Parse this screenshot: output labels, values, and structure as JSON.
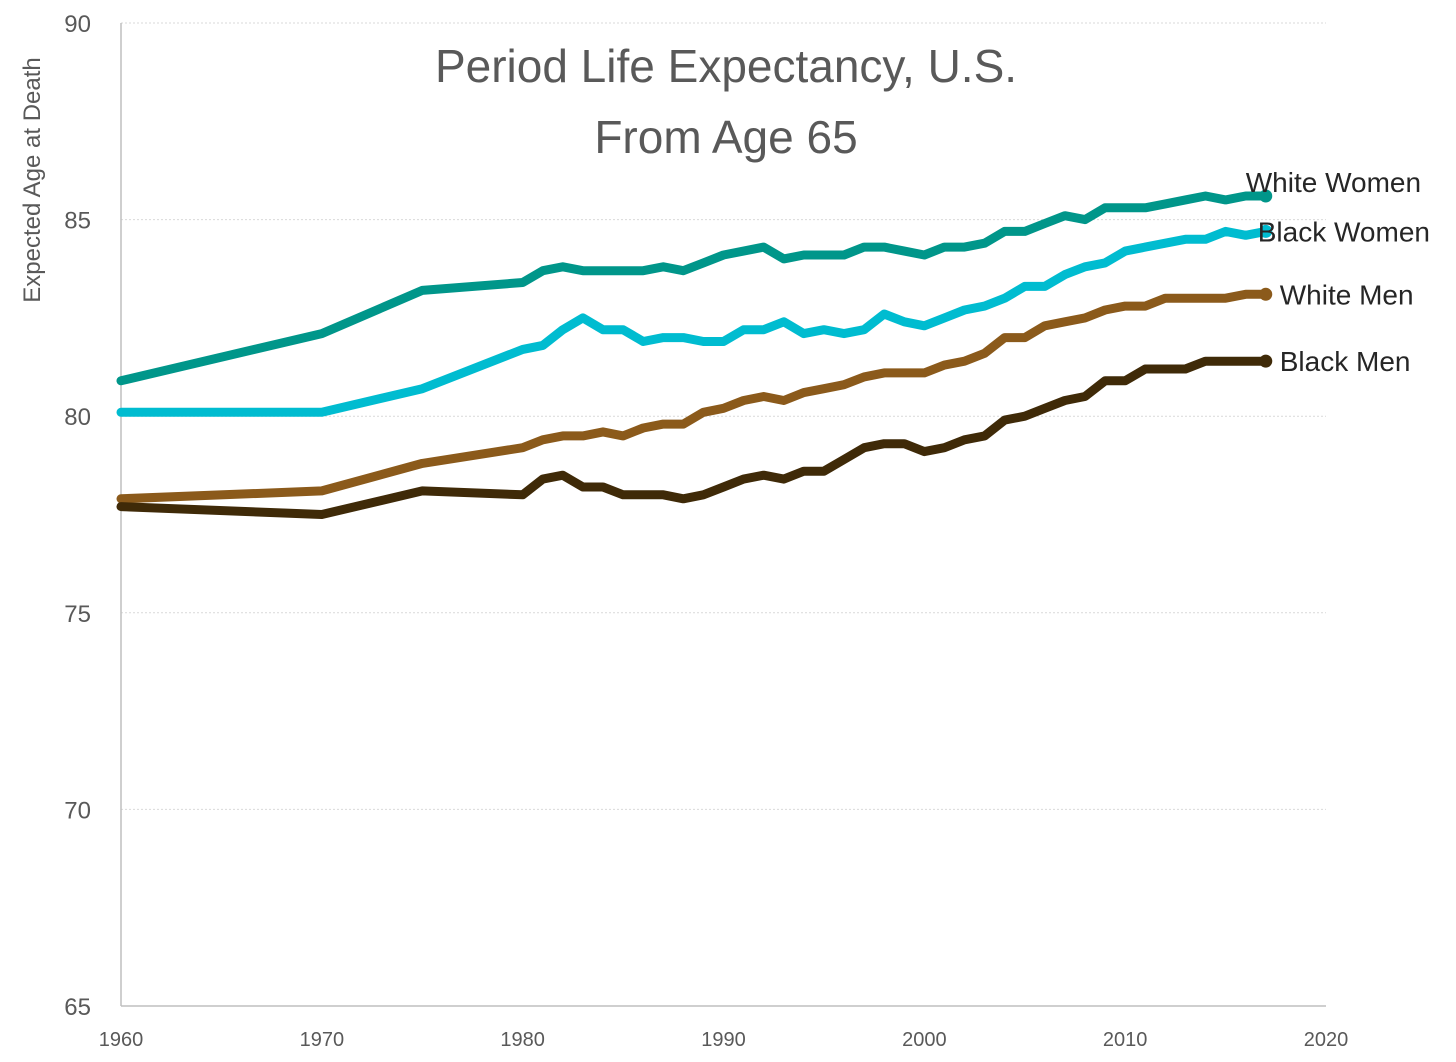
{
  "chart_data": {
    "type": "line",
    "title": [
      "Period Life Expectancy, U.S.",
      "From Age 65"
    ],
    "xlabel": "",
    "ylabel": "Expected Age at Death",
    "xlim": [
      1960,
      2020
    ],
    "ylim": [
      65,
      90
    ],
    "xticks": [
      1960,
      1970,
      1980,
      1990,
      2000,
      2010,
      2020
    ],
    "yticks": [
      65,
      70,
      75,
      80,
      85,
      90
    ],
    "grid": "horizontal",
    "legend": "direct-labels-right",
    "series": [
      {
        "name": "White Women",
        "color": "#00968A",
        "x": [
          1960,
          1970,
          1975,
          1980,
          1981,
          1982,
          1983,
          1984,
          1985,
          1986,
          1987,
          1988,
          1989,
          1990,
          1991,
          1992,
          1993,
          1994,
          1995,
          1996,
          1997,
          1998,
          1999,
          2000,
          2001,
          2002,
          2003,
          2004,
          2005,
          2006,
          2007,
          2008,
          2009,
          2010,
          2011,
          2012,
          2013,
          2014,
          2015,
          2016,
          2017
        ],
        "y": [
          80.9,
          82.1,
          83.2,
          83.4,
          83.7,
          83.8,
          83.7,
          83.7,
          83.7,
          83.7,
          83.8,
          83.7,
          83.9,
          84.1,
          84.2,
          84.3,
          84.0,
          84.1,
          84.1,
          84.1,
          84.3,
          84.3,
          84.2,
          84.1,
          84.3,
          84.3,
          84.4,
          84.7,
          84.7,
          84.9,
          85.1,
          85.0,
          85.3,
          85.3,
          85.3,
          85.4,
          85.5,
          85.6,
          85.5,
          85.6,
          85.6
        ]
      },
      {
        "name": "Black Women",
        "color": "#00BCD0",
        "x": [
          1960,
          1970,
          1975,
          1980,
          1981,
          1982,
          1983,
          1984,
          1985,
          1986,
          1987,
          1988,
          1989,
          1990,
          1991,
          1992,
          1993,
          1994,
          1995,
          1996,
          1997,
          1998,
          1999,
          2000,
          2001,
          2002,
          2003,
          2004,
          2005,
          2006,
          2007,
          2008,
          2009,
          2010,
          2011,
          2012,
          2013,
          2014,
          2015,
          2016,
          2017
        ],
        "y": [
          80.1,
          80.1,
          80.7,
          81.7,
          81.8,
          82.2,
          82.5,
          82.2,
          82.2,
          81.9,
          82.0,
          82.0,
          81.9,
          81.9,
          82.2,
          82.2,
          82.4,
          82.1,
          82.2,
          82.1,
          82.2,
          82.6,
          82.4,
          82.3,
          82.5,
          82.7,
          82.8,
          83.0,
          83.3,
          83.3,
          83.6,
          83.8,
          83.9,
          84.2,
          84.3,
          84.4,
          84.5,
          84.5,
          84.7,
          84.6,
          84.7
        ]
      },
      {
        "name": "White Men",
        "color": "#8B5A1B",
        "x": [
          1960,
          1970,
          1975,
          1980,
          1981,
          1982,
          1983,
          1984,
          1985,
          1986,
          1987,
          1988,
          1989,
          1990,
          1991,
          1992,
          1993,
          1994,
          1995,
          1996,
          1997,
          1998,
          1999,
          2000,
          2001,
          2002,
          2003,
          2004,
          2005,
          2006,
          2007,
          2008,
          2009,
          2010,
          2011,
          2012,
          2013,
          2014,
          2015,
          2016,
          2017
        ],
        "y": [
          77.9,
          78.1,
          78.8,
          79.2,
          79.4,
          79.5,
          79.5,
          79.6,
          79.5,
          79.7,
          79.8,
          79.8,
          80.1,
          80.2,
          80.4,
          80.5,
          80.4,
          80.6,
          80.7,
          80.8,
          81.0,
          81.1,
          81.1,
          81.1,
          81.3,
          81.4,
          81.6,
          82.0,
          82.0,
          82.3,
          82.4,
          82.5,
          82.7,
          82.8,
          82.8,
          83.0,
          83.0,
          83.0,
          83.0,
          83.1,
          83.1
        ]
      },
      {
        "name": "Black Men",
        "color": "#3F2A08",
        "x": [
          1960,
          1970,
          1975,
          1980,
          1981,
          1982,
          1983,
          1984,
          1985,
          1986,
          1987,
          1988,
          1989,
          1990,
          1991,
          1992,
          1993,
          1994,
          1995,
          1996,
          1997,
          1998,
          1999,
          2000,
          2001,
          2002,
          2003,
          2004,
          2005,
          2006,
          2007,
          2008,
          2009,
          2010,
          2011,
          2012,
          2013,
          2014,
          2015,
          2016,
          2017
        ],
        "y": [
          77.7,
          77.5,
          78.1,
          78.0,
          78.4,
          78.5,
          78.2,
          78.2,
          78.0,
          78.0,
          78.0,
          77.9,
          78.0,
          78.2,
          78.4,
          78.5,
          78.4,
          78.6,
          78.6,
          78.9,
          79.2,
          79.3,
          79.3,
          79.1,
          79.2,
          79.4,
          79.5,
          79.9,
          80.0,
          80.2,
          80.4,
          80.5,
          80.9,
          80.9,
          81.2,
          81.2,
          81.2,
          81.4,
          81.4,
          81.4,
          81.4
        ]
      }
    ]
  }
}
